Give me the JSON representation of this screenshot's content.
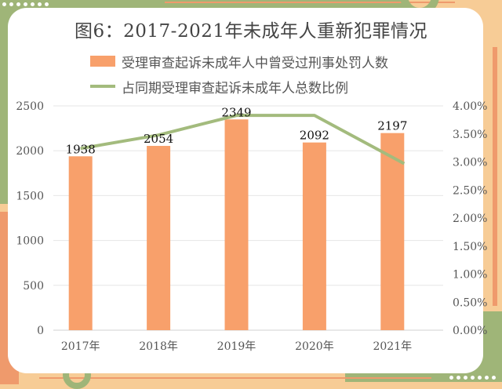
{
  "chart_data": {
    "type": "bar+line",
    "title": "图6：2017-2021年未成年人重新犯罪情况",
    "categories": [
      "2017年",
      "2018年",
      "2019年",
      "2020年",
      "2021年"
    ],
    "series": [
      {
        "name": "受理审查起诉未成年人中曾受过刑事处罚人数",
        "type": "bar",
        "axis": "left",
        "color": "#f8a06b",
        "values": [
          1938,
          2054,
          2349,
          2092,
          2197
        ]
      },
      {
        "name": "占同期受理审查起诉未成年人总数比例",
        "type": "line",
        "axis": "right",
        "color": "#a3bb7d",
        "values": [
          3.24,
          3.48,
          3.83,
          3.83,
          2.97
        ]
      }
    ],
    "left_axis": {
      "ylim": [
        0,
        2500
      ],
      "ticks": [
        "0",
        "500",
        "1000",
        "1500",
        "2000",
        "2500"
      ]
    },
    "right_axis": {
      "ylim": [
        0,
        4
      ],
      "ticks": [
        "0.00%",
        "0.50%",
        "1.00%",
        "1.50%",
        "2.00%",
        "2.50%",
        "3.00%",
        "3.50%",
        "4.00%"
      ]
    },
    "legend_position": "top",
    "grid": true
  },
  "title": "图6：2017-2021年未成年人重新犯罪情况",
  "legend": {
    "bar_label": "受理审查起诉未成年人中曾受过刑事处罚人数",
    "line_label": "占同期受理审查起诉未成年人总数比例"
  }
}
